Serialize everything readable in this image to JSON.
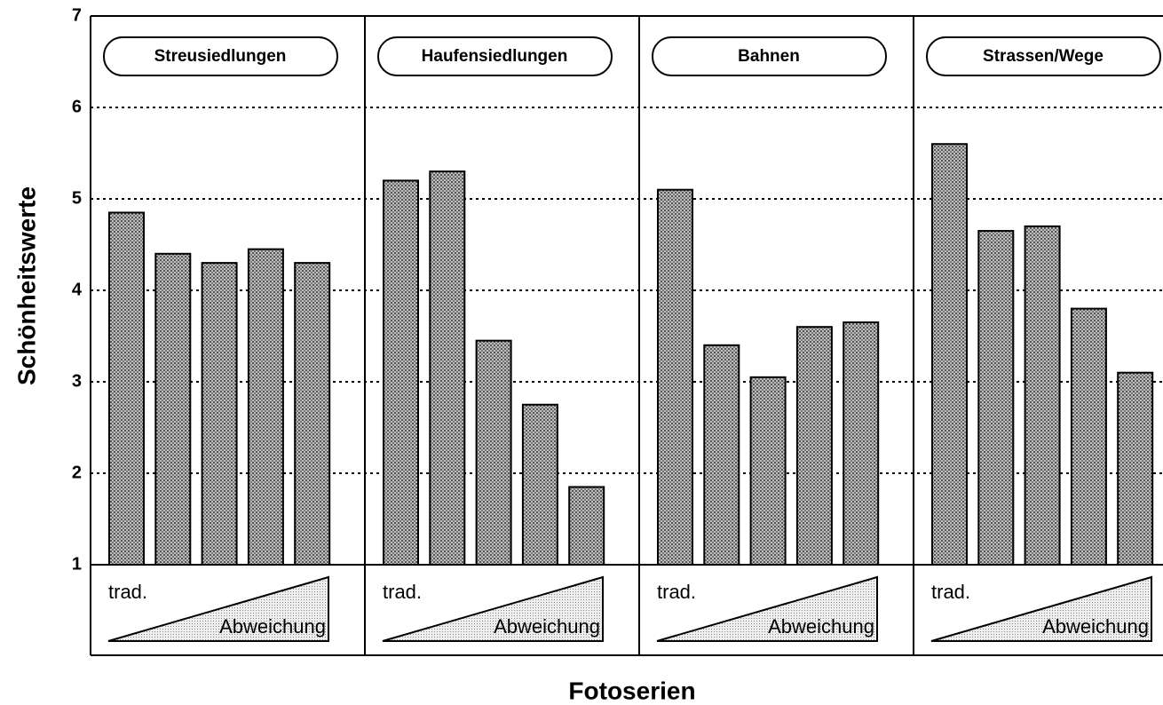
{
  "chart_data": {
    "type": "bar",
    "y_label": "Schönheitswerte",
    "x_label": "Fotoserien",
    "ylim": [
      1,
      7
    ],
    "yticks": [
      1,
      2,
      3,
      4,
      5,
      6,
      7
    ],
    "grid": true,
    "color": "#8a8a8a",
    "scale_start_label": "trad.",
    "scale_end_label": "Abweichung",
    "panels": [
      {
        "name": "Streusiedlungen",
        "values": [
          4.85,
          4.4,
          4.3,
          4.45,
          4.3
        ]
      },
      {
        "name": "Haufensiedlungen",
        "values": [
          5.2,
          5.3,
          3.45,
          2.75,
          1.85
        ]
      },
      {
        "name": "Bahnen",
        "values": [
          5.1,
          3.4,
          3.05,
          3.6,
          3.65
        ]
      },
      {
        "name": "Strassen/Wege",
        "values": [
          5.6,
          4.65,
          4.7,
          3.8,
          3.1
        ]
      }
    ]
  }
}
